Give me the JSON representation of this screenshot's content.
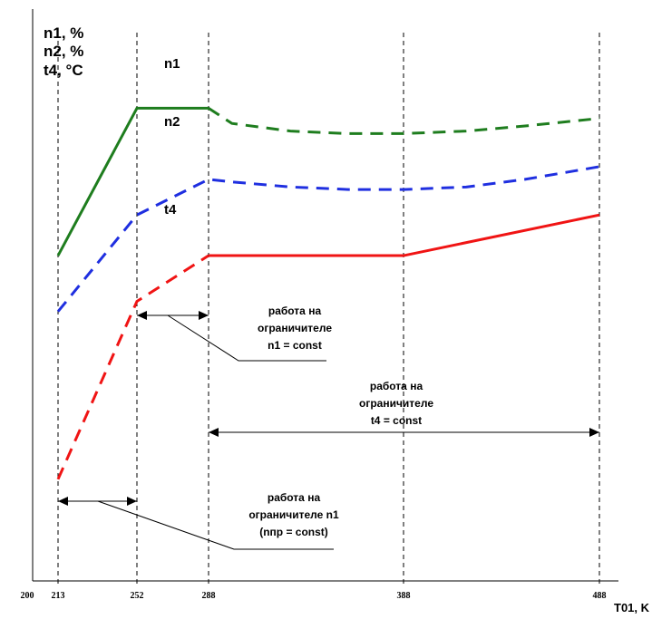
{
  "chart_data": {
    "type": "line",
    "y_axis_labels": [
      "n1, %",
      "n2, %",
      "t4, °C"
    ],
    "x_axis_label": "T01, K",
    "x_ticks": [
      "200",
      "213",
      "252",
      "288",
      "388",
      "488"
    ],
    "x_range": [
      200,
      490
    ],
    "grid": false,
    "reference_lines_x": [
      213,
      252,
      288,
      388,
      488
    ],
    "series": [
      {
        "name": "n1",
        "color": "#1e7d1e",
        "values_relative": [
          [
            213,
            0.64
          ],
          [
            252,
            0.93
          ],
          [
            288,
            0.93
          ],
          [
            300,
            0.9
          ],
          [
            330,
            0.885
          ],
          [
            360,
            0.88
          ],
          [
            388,
            0.88
          ],
          [
            420,
            0.885
          ],
          [
            450,
            0.895
          ],
          [
            488,
            0.91
          ]
        ],
        "solid_until": 288
      },
      {
        "name": "n2",
        "color": "#1f2fe0",
        "values_relative": [
          [
            213,
            0.53
          ],
          [
            252,
            0.72
          ],
          [
            288,
            0.79
          ],
          [
            300,
            0.785
          ],
          [
            330,
            0.775
          ],
          [
            360,
            0.77
          ],
          [
            388,
            0.77
          ],
          [
            420,
            0.775
          ],
          [
            450,
            0.79
          ],
          [
            488,
            0.815
          ]
        ],
        "solid_until": 213
      },
      {
        "name": "t4",
        "color": "#f01414",
        "values_relative": [
          [
            213,
            0.2
          ],
          [
            252,
            0.55
          ],
          [
            288,
            0.64
          ],
          [
            388,
            0.64
          ],
          [
            488,
            0.72
          ]
        ],
        "solid_until": 288,
        "dashed_from": 213
      }
    ],
    "annotations": [
      {
        "lines": [
          "работа на",
          "ограничителе",
          "n1 = const"
        ],
        "range": [
          252,
          288
        ]
      },
      {
        "lines": [
          "работа на",
          "ограничителе",
          "t4 = const"
        ],
        "range": [
          288,
          488
        ]
      },
      {
        "lines": [
          "работа на",
          "ограничителе n1",
          "(nпр = const)"
        ],
        "range": [
          213,
          252
        ]
      }
    ]
  }
}
